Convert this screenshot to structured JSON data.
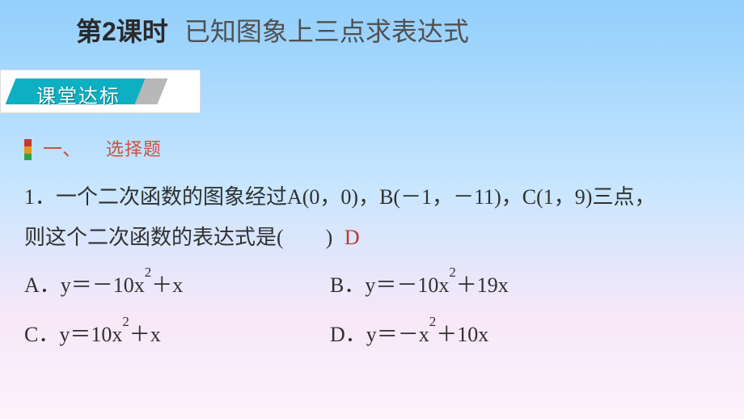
{
  "title": {
    "lesson": "第2课时",
    "subtitle": "已知图象上三点求表达式"
  },
  "badge": {
    "label": "课堂达标"
  },
  "section": {
    "num": "一、",
    "cat": "选择题"
  },
  "question": {
    "line1": "1．一个二次函数的图象经过A(0，0)，B(－1，－11)，C(1，9)三点，",
    "line2_pre": "则这个二次函数的表达式是(　　)",
    "answer": "D"
  },
  "options": {
    "a": "A．y＝－10x²＋x",
    "b": "B．y＝－10x²＋19x",
    "c": "C．y＝10x²＋x",
    "d": "D．y＝－x²＋10x"
  },
  "colors": {
    "gradient_top": "#92cffb",
    "gradient_bottom": "#fef2fa",
    "badge_bg": "#0dafc2",
    "accent_text": "#c7553f",
    "answer_color": "#c0392b"
  }
}
